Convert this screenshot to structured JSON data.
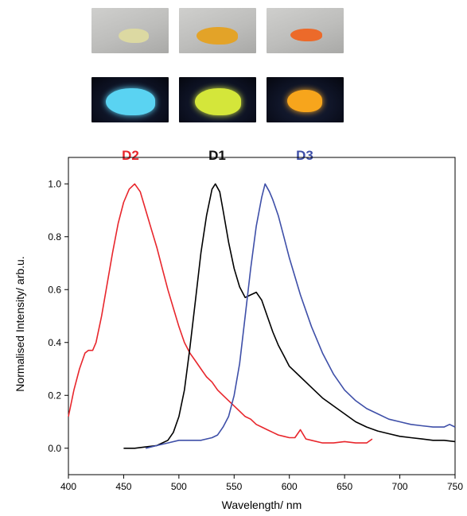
{
  "samples": [
    {
      "label": "D2",
      "label_color": "#e8262c",
      "powder_day": "#dcd9a2",
      "powder_uv": "#5ad3f2"
    },
    {
      "label": "D1",
      "label_color": "#111111",
      "powder_day": "#e3a328",
      "powder_uv": "#d4e63a"
    },
    {
      "label": "D3",
      "label_color": "#3e4fa8",
      "powder_day": "#ec6a2a",
      "powder_uv": "#f7a51c"
    }
  ],
  "chart_data": {
    "type": "line",
    "xlabel": "Wavelength/ nm",
    "ylabel": "Normalised Intensity/ arb.u.",
    "xlim": [
      400,
      750
    ],
    "ylim": [
      -0.1,
      1.1
    ],
    "xticks": [
      400,
      450,
      500,
      550,
      600,
      650,
      700,
      750
    ],
    "yticks": [
      0.0,
      0.2,
      0.4,
      0.6,
      0.8,
      1.0
    ],
    "ytick_labels": [
      "0.0",
      "0.2",
      "0.4",
      "0.6",
      "0.8",
      "1.0"
    ],
    "grid": false,
    "series": [
      {
        "name": "D2",
        "color": "#e8262c",
        "x": [
          400,
          405,
          410,
          415,
          418,
          422,
          425,
          430,
          435,
          440,
          445,
          450,
          455,
          460,
          465,
          470,
          475,
          480,
          485,
          490,
          495,
          500,
          505,
          510,
          515,
          520,
          525,
          530,
          535,
          540,
          545,
          550,
          555,
          560,
          565,
          570,
          575,
          580,
          585,
          590,
          595,
          600,
          605,
          610,
          615,
          620,
          630,
          640,
          650,
          660,
          670,
          675
        ],
        "y": [
          0.12,
          0.22,
          0.3,
          0.36,
          0.37,
          0.37,
          0.4,
          0.5,
          0.62,
          0.74,
          0.85,
          0.93,
          0.98,
          1.0,
          0.97,
          0.9,
          0.83,
          0.76,
          0.68,
          0.6,
          0.53,
          0.46,
          0.4,
          0.36,
          0.33,
          0.3,
          0.27,
          0.25,
          0.22,
          0.2,
          0.18,
          0.16,
          0.14,
          0.12,
          0.11,
          0.09,
          0.08,
          0.07,
          0.06,
          0.05,
          0.045,
          0.04,
          0.04,
          0.07,
          0.035,
          0.03,
          0.02,
          0.02,
          0.025,
          0.02,
          0.02,
          0.035
        ]
      },
      {
        "name": "D1",
        "color": "#000000",
        "x": [
          450,
          460,
          470,
          480,
          490,
          495,
          500,
          505,
          510,
          515,
          520,
          525,
          530,
          533,
          537,
          540,
          545,
          550,
          555,
          560,
          565,
          570,
          575,
          580,
          585,
          590,
          595,
          600,
          610,
          620,
          630,
          640,
          650,
          660,
          670,
          680,
          690,
          700,
          710,
          720,
          730,
          740,
          750
        ],
        "y": [
          0.0,
          0.0,
          0.005,
          0.01,
          0.03,
          0.06,
          0.12,
          0.22,
          0.38,
          0.56,
          0.74,
          0.88,
          0.98,
          1.0,
          0.97,
          0.9,
          0.78,
          0.68,
          0.61,
          0.57,
          0.58,
          0.59,
          0.56,
          0.5,
          0.44,
          0.39,
          0.35,
          0.31,
          0.27,
          0.23,
          0.19,
          0.16,
          0.13,
          0.1,
          0.08,
          0.065,
          0.055,
          0.045,
          0.04,
          0.035,
          0.03,
          0.03,
          0.025
        ]
      },
      {
        "name": "D3",
        "color": "#3e4fa8",
        "x": [
          470,
          480,
          490,
          500,
          510,
          520,
          530,
          535,
          540,
          545,
          550,
          555,
          560,
          565,
          570,
          575,
          578,
          582,
          585,
          590,
          595,
          600,
          610,
          620,
          630,
          640,
          650,
          660,
          670,
          680,
          690,
          700,
          710,
          720,
          730,
          740,
          745,
          750
        ],
        "y": [
          0.0,
          0.01,
          0.02,
          0.03,
          0.03,
          0.03,
          0.04,
          0.05,
          0.08,
          0.12,
          0.2,
          0.32,
          0.5,
          0.68,
          0.84,
          0.95,
          1.0,
          0.97,
          0.94,
          0.88,
          0.8,
          0.72,
          0.58,
          0.46,
          0.36,
          0.28,
          0.22,
          0.18,
          0.15,
          0.13,
          0.11,
          0.1,
          0.09,
          0.085,
          0.08,
          0.08,
          0.09,
          0.08
        ]
      }
    ]
  }
}
